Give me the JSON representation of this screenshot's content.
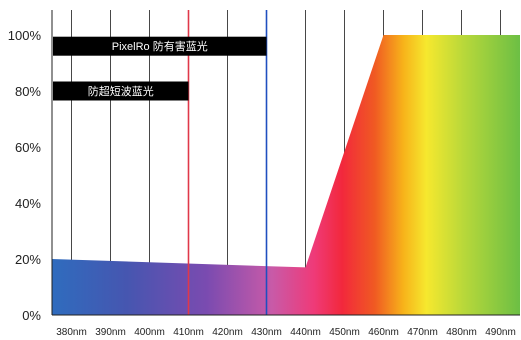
{
  "chart_data": {
    "type": "area",
    "title": "",
    "xlabel": "",
    "ylabel": "",
    "x_unit": "nm",
    "x_min": 375,
    "x_max": 495,
    "x_ticks": [
      380,
      390,
      400,
      410,
      420,
      430,
      440,
      450,
      460,
      470,
      480,
      490
    ],
    "x_tick_labels": [
      "380nm",
      "390nm",
      "400nm",
      "410nm",
      "420nm",
      "430nm",
      "440nm",
      "450nm",
      "460nm",
      "470nm",
      "480nm",
      "490nm"
    ],
    "ylim": [
      0,
      100
    ],
    "y_ticks": [
      0,
      20,
      40,
      60,
      80,
      100
    ],
    "y_tick_labels": [
      "0%",
      "20%",
      "40%",
      "60%",
      "80%",
      "100%"
    ],
    "grid": "vertical lines at each x tick",
    "series": [
      {
        "x": [
          375,
          440,
          460,
          495
        ],
        "y": [
          20,
          17,
          100,
          100
        ],
        "fill": "spectrum gradient from blue to green"
      }
    ],
    "markers": [
      {
        "x": 410,
        "color": "#e0384a",
        "label": "防超短波蓝光",
        "label_y": 80
      },
      {
        "x": 430,
        "color": "#1f4fbf",
        "label": "PixelRo 防有害蓝光",
        "label_y": 96
      }
    ],
    "annotation_bg": "#000000",
    "annotation_text_color": "#ffffff"
  }
}
